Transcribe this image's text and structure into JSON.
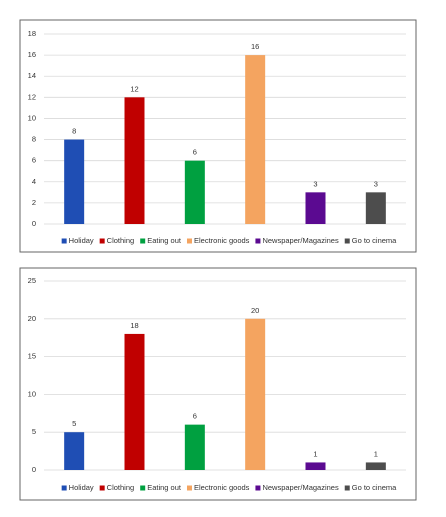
{
  "chart_data": [
    {
      "type": "bar",
      "categories": [
        "Holiday",
        "Clothing",
        "Eating out",
        "Electronic goods",
        "Newspaper/Magazines",
        "Go to cinema"
      ],
      "values": [
        8,
        12,
        6,
        16,
        3,
        3
      ],
      "colors": [
        "#1f4eb4",
        "#c00000",
        "#00a040",
        "#f4a460",
        "#5b0a91",
        "#4d4d4d"
      ],
      "ylim": [
        0,
        18
      ],
      "yticks": [
        0,
        2,
        4,
        6,
        8,
        10,
        12,
        14,
        16,
        18
      ],
      "grid": true,
      "legend": "bottom"
    },
    {
      "type": "bar",
      "categories": [
        "Holiday",
        "Clothing",
        "Eating out",
        "Electronic goods",
        "Newspaper/Magazines",
        "Go to cinema"
      ],
      "values": [
        5,
        18,
        6,
        20,
        1,
        1
      ],
      "colors": [
        "#1f4eb4",
        "#c00000",
        "#00a040",
        "#f4a460",
        "#5b0a91",
        "#4d4d4d"
      ],
      "ylim": [
        0,
        25
      ],
      "yticks": [
        0,
        5,
        10,
        15,
        20,
        25
      ],
      "grid": true,
      "legend": "bottom"
    }
  ]
}
